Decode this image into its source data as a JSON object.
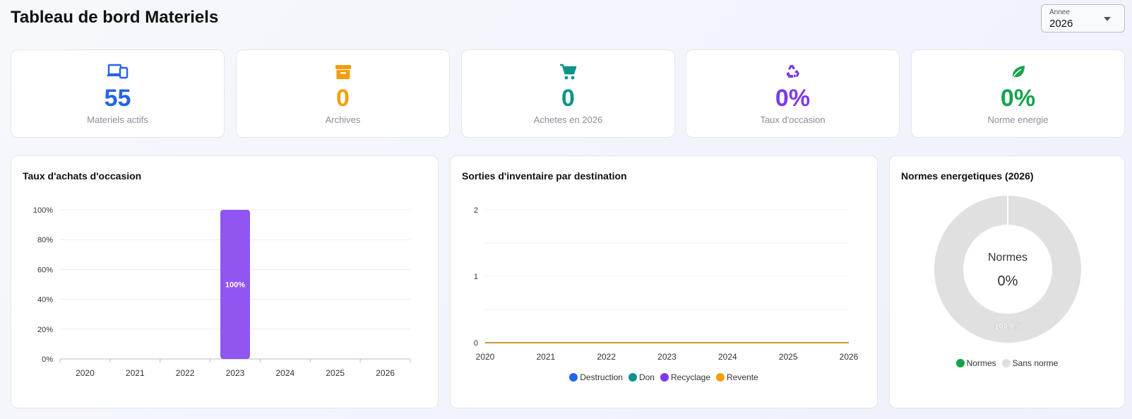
{
  "header": {
    "title": "Tableau de bord Materiels",
    "year_select": {
      "label": "Annee",
      "value": "2026"
    }
  },
  "colors": {
    "blue": "#2563eb",
    "amber": "#f59e0b",
    "teal": "#0d9488",
    "purple": "#7c3aed",
    "green": "#16a34a",
    "bar_purple": "#9155f2",
    "grey": "#e0e0e0",
    "line_orange": "#f59e0b"
  },
  "kpis": [
    {
      "icon": "devices-icon",
      "value": "55",
      "label": "Materiels actifs",
      "color": "#2563eb"
    },
    {
      "icon": "archive-icon",
      "value": "0",
      "label": "Archives",
      "color": "#f59e0b"
    },
    {
      "icon": "cart-icon",
      "value": "0",
      "label": "Achetes en 2026",
      "color": "#0d9488"
    },
    {
      "icon": "recycle-icon",
      "value": "0%",
      "label": "Taux d'occasion",
      "color": "#7c3aed"
    },
    {
      "icon": "leaf-icon",
      "value": "0%",
      "label": "Norme energie",
      "color": "#16a34a"
    }
  ],
  "charts": {
    "occasion": {
      "title": "Taux d'achats d'occasion",
      "chart_data": {
        "type": "bar",
        "categories": [
          "2020",
          "2021",
          "2022",
          "2023",
          "2024",
          "2025",
          "2026"
        ],
        "values": [
          0,
          0,
          0,
          100,
          0,
          0,
          0
        ],
        "data_labels": [
          "",
          "",
          "",
          "100%",
          "",
          "",
          ""
        ],
        "y_ticks": [
          "0%",
          "20%",
          "40%",
          "60%",
          "80%",
          "100%"
        ],
        "ylim": [
          0,
          100
        ],
        "grid": true
      }
    },
    "sorties": {
      "title": "Sorties d'inventaire par destination",
      "chart_data": {
        "type": "line",
        "x": [
          "2020",
          "2021",
          "2022",
          "2023",
          "2024",
          "2025",
          "2026"
        ],
        "y_ticks": [
          "0",
          "1",
          "2"
        ],
        "ylim": [
          0,
          2
        ],
        "series": [
          {
            "name": "Destruction",
            "color": "#2563eb",
            "values": [
              0,
              0,
              0,
              0,
              0,
              0,
              0
            ]
          },
          {
            "name": "Don",
            "color": "#0d9488",
            "values": [
              0,
              0,
              0,
              0,
              0,
              0,
              0
            ]
          },
          {
            "name": "Recyclage",
            "color": "#7c3aed",
            "values": [
              0,
              0,
              0,
              0,
              0,
              0,
              0
            ]
          },
          {
            "name": "Revente",
            "color": "#f59e0b",
            "values": [
              0,
              0,
              0,
              0,
              0,
              0,
              0
            ]
          }
        ],
        "legend": "bottom",
        "grid": true
      }
    },
    "normes": {
      "title": "Normes energetiques (2026)",
      "center_label": "Normes",
      "center_value": "0%",
      "chart_data": {
        "type": "pie",
        "categories": [
          "Normes",
          "Sans norme"
        ],
        "values": [
          0,
          100
        ],
        "colors": [
          "#16a34a",
          "#e0e0e0"
        ],
        "slice_label": "100.0%",
        "legend": "bottom"
      }
    }
  }
}
